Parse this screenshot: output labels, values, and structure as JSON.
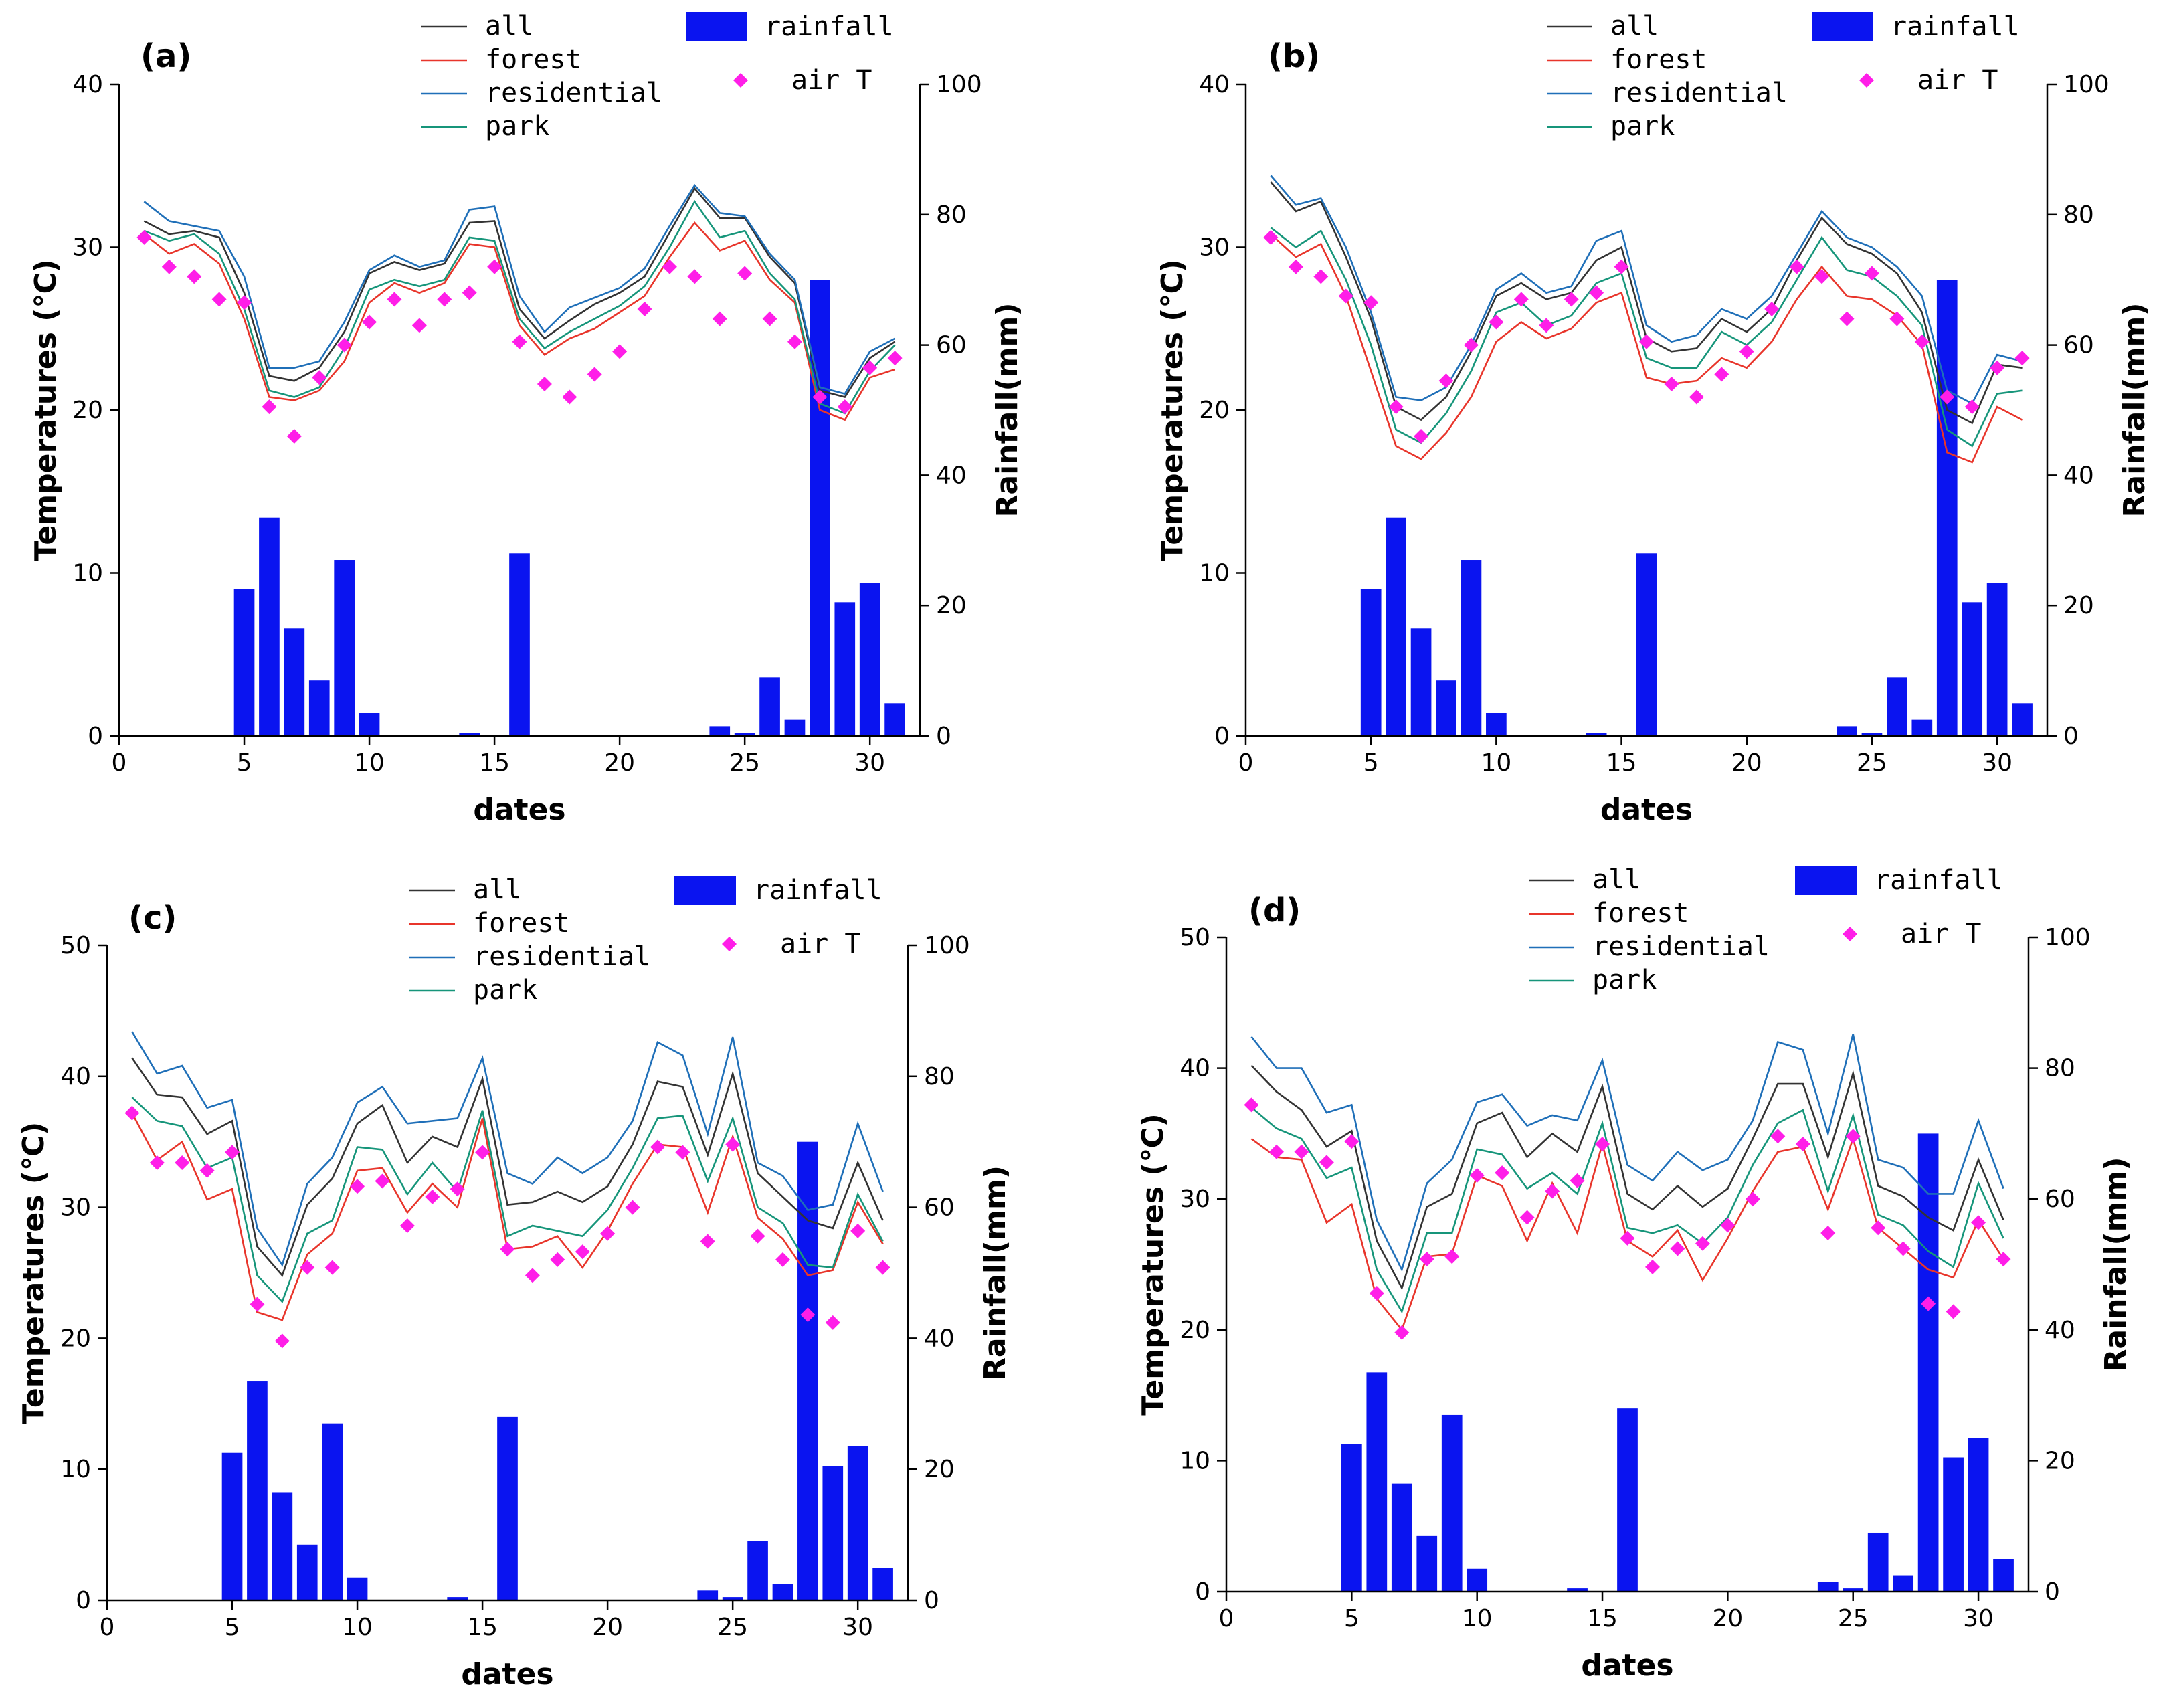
{
  "colors": {
    "all": "#333333",
    "forest": "#e8352b",
    "residential": "#1f6fb8",
    "park": "#16957a",
    "rainfall": "#0a14f0",
    "airT": "#ff1ee8",
    "axis": "#000000"
  },
  "chart_data": [
    {
      "type": "bar+line",
      "panel": "(a)",
      "xlabel": "dates",
      "ylabel": "Temperatures (℃)",
      "y2label": "Rainfall(mm)",
      "xlim": [
        0,
        32
      ],
      "ylim": [
        0,
        40
      ],
      "y2lim": [
        0,
        100
      ],
      "xticks": [
        0,
        5,
        10,
        15,
        20,
        25,
        30
      ],
      "yticks": [
        0,
        10,
        20,
        30,
        40
      ],
      "y2ticks": [
        0,
        20,
        40,
        60,
        80,
        100
      ],
      "legend": {
        "all": "all",
        "forest": "forest",
        "residential": "residential",
        "park": "park",
        "rainfall": "rainfall",
        "airT": "air T"
      },
      "x": [
        1,
        2,
        3,
        4,
        5,
        6,
        7,
        8,
        9,
        10,
        11,
        12,
        13,
        14,
        15,
        16,
        17,
        18,
        19,
        20,
        21,
        22,
        23,
        24,
        25,
        26,
        27,
        28,
        29,
        30,
        31
      ],
      "series": [
        {
          "key": "all",
          "name": "all",
          "values": [
            31.6,
            30.8,
            31.0,
            30.6,
            27.2,
            22.1,
            21.8,
            22.6,
            24.8,
            28.4,
            29.1,
            28.6,
            29.0,
            31.5,
            31.6,
            26.2,
            24.4,
            25.5,
            26.5,
            27.2,
            28.2,
            30.9,
            33.6,
            31.8,
            31.8,
            29.4,
            27.8,
            21.2,
            20.8,
            23.2,
            24.2
          ]
        },
        {
          "key": "forest",
          "name": "forest",
          "values": [
            30.8,
            29.6,
            30.2,
            29.0,
            25.6,
            20.8,
            20.6,
            21.2,
            23.0,
            26.6,
            27.8,
            27.2,
            27.8,
            30.2,
            30.0,
            25.2,
            23.4,
            24.4,
            25.0,
            26.0,
            27.0,
            29.4,
            31.5,
            29.8,
            30.4,
            28.0,
            26.6,
            20.0,
            19.4,
            22.0,
            22.5
          ]
        },
        {
          "key": "residential",
          "name": "residential",
          "values": [
            32.8,
            31.6,
            31.3,
            31.0,
            28.2,
            22.6,
            22.6,
            23.0,
            25.4,
            28.6,
            29.5,
            28.8,
            29.2,
            32.3,
            32.5,
            27.0,
            24.8,
            26.3,
            26.9,
            27.5,
            28.7,
            31.3,
            33.8,
            32.1,
            31.9,
            29.6,
            28.0,
            21.4,
            21.0,
            23.6,
            24.4
          ]
        },
        {
          "key": "park",
          "name": "park",
          "values": [
            31.0,
            30.4,
            30.8,
            29.6,
            26.2,
            21.2,
            20.8,
            21.4,
            23.8,
            27.4,
            28.0,
            27.6,
            28.0,
            30.6,
            30.4,
            25.6,
            23.8,
            24.8,
            25.6,
            26.4,
            27.6,
            30.0,
            32.8,
            30.6,
            31.0,
            28.4,
            26.8,
            20.4,
            19.8,
            22.4,
            24.0
          ]
        }
      ],
      "airT": [
        30.6,
        28.8,
        28.2,
        26.8,
        26.6,
        20.2,
        18.4,
        22.0,
        24.0,
        25.4,
        26.8,
        25.2,
        26.8,
        27.2,
        28.8,
        24.2,
        21.6,
        20.8,
        22.2,
        23.6,
        26.2,
        28.8,
        28.2,
        25.6,
        28.4,
        25.6,
        24.2,
        20.8,
        20.2,
        22.6,
        23.2
      ],
      "rainfall": [
        0,
        0,
        0,
        0,
        22.5,
        33.5,
        16.5,
        8.5,
        27.0,
        3.5,
        0,
        0,
        0,
        0.5,
        0,
        28.0,
        0,
        0,
        0,
        0,
        0,
        0,
        0,
        1.5,
        0.5,
        9.0,
        2.5,
        70.0,
        20.5,
        23.5,
        5.0
      ]
    },
    {
      "type": "bar+line",
      "panel": "(b)",
      "xlabel": "dates",
      "ylabel": "Temperatures (℃)",
      "y2label": "Rainfall(mm)",
      "xlim": [
        0,
        32
      ],
      "ylim": [
        0,
        40
      ],
      "y2lim": [
        0,
        100
      ],
      "xticks": [
        0,
        5,
        10,
        15,
        20,
        25,
        30
      ],
      "yticks": [
        0,
        10,
        20,
        30,
        40
      ],
      "y2ticks": [
        0,
        20,
        40,
        60,
        80,
        100
      ],
      "legend": {
        "all": "all",
        "forest": "forest",
        "residential": "residential",
        "park": "park",
        "rainfall": "rainfall",
        "airT": "air T"
      },
      "x": [
        1,
        2,
        3,
        4,
        5,
        6,
        7,
        8,
        9,
        10,
        11,
        12,
        13,
        14,
        15,
        16,
        17,
        18,
        19,
        20,
        21,
        22,
        23,
        24,
        25,
        26,
        27,
        28,
        29,
        30,
        31
      ],
      "series": [
        {
          "key": "all",
          "name": "all",
          "values": [
            34.0,
            32.2,
            32.8,
            29.4,
            25.6,
            20.2,
            19.4,
            20.8,
            23.6,
            27.0,
            27.8,
            26.8,
            27.2,
            29.2,
            30.0,
            24.4,
            23.6,
            23.8,
            25.6,
            24.8,
            26.2,
            29.2,
            31.8,
            30.2,
            29.6,
            28.4,
            26.0,
            20.0,
            19.2,
            22.8,
            22.6
          ]
        },
        {
          "key": "forest",
          "name": "forest",
          "values": [
            30.8,
            29.4,
            30.2,
            27.0,
            22.4,
            17.8,
            17.0,
            18.6,
            20.8,
            24.2,
            25.4,
            24.4,
            25.0,
            26.6,
            27.2,
            22.0,
            21.6,
            21.8,
            23.2,
            22.6,
            24.2,
            26.8,
            28.8,
            27.0,
            26.8,
            25.8,
            24.0,
            17.4,
            16.8,
            20.2,
            19.4
          ]
        },
        {
          "key": "residential",
          "name": "residential",
          "values": [
            34.4,
            32.6,
            33.0,
            30.0,
            26.0,
            20.8,
            20.6,
            21.4,
            24.0,
            27.4,
            28.4,
            27.2,
            27.6,
            30.4,
            31.0,
            25.2,
            24.2,
            24.6,
            26.2,
            25.6,
            27.0,
            29.6,
            32.2,
            30.6,
            30.0,
            28.8,
            27.0,
            21.2,
            20.4,
            23.4,
            23.0
          ]
        },
        {
          "key": "park",
          "name": "park",
          "values": [
            31.2,
            30.0,
            31.0,
            28.0,
            24.0,
            18.8,
            18.0,
            19.8,
            22.4,
            26.0,
            26.6,
            25.2,
            25.8,
            27.8,
            28.4,
            23.2,
            22.6,
            22.6,
            24.8,
            24.0,
            25.4,
            28.0,
            30.6,
            28.6,
            28.2,
            27.0,
            25.2,
            18.8,
            17.8,
            21.0,
            21.2
          ]
        }
      ],
      "airT": [
        30.6,
        28.8,
        28.2,
        27.0,
        26.6,
        20.2,
        18.4,
        21.8,
        24.0,
        25.4,
        26.8,
        25.2,
        26.8,
        27.2,
        28.8,
        24.2,
        21.6,
        20.8,
        22.2,
        23.6,
        26.2,
        28.8,
        28.2,
        25.6,
        28.4,
        25.6,
        24.2,
        20.8,
        20.2,
        22.6,
        23.2
      ],
      "rainfall": [
        0,
        0,
        0,
        0,
        22.5,
        33.5,
        16.5,
        8.5,
        27.0,
        3.5,
        0,
        0,
        0,
        0.5,
        0,
        28.0,
        0,
        0,
        0,
        0,
        0,
        0,
        0,
        1.5,
        0.5,
        9.0,
        2.5,
        70.0,
        20.5,
        23.5,
        5.0
      ]
    },
    {
      "type": "bar+line",
      "panel": "(c)",
      "xlabel": "dates",
      "ylabel": "Temperatures (℃)",
      "y2label": "Rainfall(mm)",
      "xlim": [
        0,
        32
      ],
      "ylim": [
        0,
        50
      ],
      "y2lim": [
        0,
        100
      ],
      "xticks": [
        0,
        5,
        10,
        15,
        20,
        25,
        30
      ],
      "yticks": [
        0,
        10,
        20,
        30,
        40,
        50
      ],
      "y2ticks": [
        0,
        20,
        40,
        60,
        80,
        100
      ],
      "legend": {
        "all": "all",
        "forest": "forest",
        "residential": "residential",
        "park": "park",
        "rainfall": "rainfall",
        "airT": "air T"
      },
      "x": [
        1,
        2,
        3,
        4,
        5,
        6,
        7,
        8,
        9,
        10,
        11,
        12,
        13,
        14,
        15,
        16,
        17,
        18,
        19,
        20,
        21,
        22,
        23,
        24,
        25,
        26,
        27,
        28,
        29,
        30,
        31
      ],
      "series": [
        {
          "key": "all",
          "name": "all",
          "values": [
            41.4,
            38.6,
            38.4,
            35.6,
            36.6,
            27.0,
            24.8,
            30.2,
            32.2,
            36.4,
            37.8,
            33.4,
            35.4,
            34.6,
            39.8,
            30.2,
            30.4,
            31.2,
            30.4,
            31.6,
            34.8,
            39.6,
            39.2,
            34.0,
            40.2,
            32.6,
            30.8,
            29.0,
            28.4,
            33.4,
            29.0
          ]
        },
        {
          "key": "forest",
          "name": "forest",
          "values": [
            37.2,
            33.6,
            35.0,
            30.6,
            31.4,
            22.0,
            21.4,
            26.4,
            28.0,
            32.8,
            33.0,
            29.6,
            31.8,
            30.0,
            36.8,
            26.8,
            27.0,
            27.8,
            25.4,
            28.2,
            31.8,
            34.8,
            34.6,
            29.6,
            35.4,
            29.2,
            27.6,
            24.8,
            25.2,
            30.4,
            27.2
          ]
        },
        {
          "key": "residential",
          "name": "residential",
          "values": [
            43.4,
            40.2,
            40.8,
            37.6,
            38.2,
            28.4,
            25.6,
            31.8,
            33.8,
            38.0,
            39.2,
            36.4,
            36.6,
            36.8,
            41.4,
            32.6,
            31.8,
            33.8,
            32.6,
            33.8,
            36.6,
            42.6,
            41.6,
            35.6,
            43.0,
            33.4,
            32.4,
            29.8,
            30.2,
            36.4,
            31.2
          ]
        },
        {
          "key": "park",
          "name": "park",
          "values": [
            38.4,
            36.6,
            36.2,
            33.0,
            33.8,
            24.8,
            22.8,
            28.0,
            29.0,
            34.6,
            34.4,
            31.0,
            33.4,
            31.2,
            37.4,
            27.8,
            28.6,
            28.2,
            27.8,
            29.8,
            33.0,
            36.8,
            37.0,
            32.0,
            36.8,
            30.0,
            28.8,
            25.6,
            25.4,
            31.0,
            27.4
          ]
        }
      ],
      "airT": [
        37.2,
        33.4,
        33.4,
        32.8,
        34.2,
        22.6,
        19.8,
        25.4,
        25.4,
        31.6,
        32.0,
        28.6,
        30.8,
        31.4,
        34.2,
        26.8,
        24.8,
        26.0,
        26.6,
        28.0,
        30.0,
        34.6,
        34.2,
        27.4,
        34.8,
        27.8,
        26.0,
        21.8,
        21.2,
        28.2,
        25.4
      ],
      "rainfall": [
        0,
        0,
        0,
        0,
        22.5,
        33.5,
        16.5,
        8.5,
        27.0,
        3.5,
        0,
        0,
        0,
        0.5,
        0,
        28.0,
        0,
        0,
        0,
        0,
        0,
        0,
        0,
        1.5,
        0.5,
        9.0,
        2.5,
        70.0,
        20.5,
        23.5,
        5.0
      ]
    },
    {
      "type": "bar+line",
      "panel": "(d)",
      "xlabel": "dates",
      "ylabel": "Temperatures (℃)",
      "y2label": "Rainfall(mm)",
      "xlim": [
        0,
        32
      ],
      "ylim": [
        0,
        50
      ],
      "y2lim": [
        0,
        100
      ],
      "xticks": [
        0,
        5,
        10,
        15,
        20,
        25,
        30
      ],
      "yticks": [
        0,
        10,
        20,
        30,
        40,
        50
      ],
      "y2ticks": [
        0,
        20,
        40,
        60,
        80,
        100
      ],
      "legend": {
        "all": "all",
        "forest": "forest",
        "residential": "residential",
        "park": "park",
        "rainfall": "rainfall",
        "airT": "air T"
      },
      "x": [
        1,
        2,
        3,
        4,
        5,
        6,
        7,
        8,
        9,
        10,
        11,
        12,
        13,
        14,
        15,
        16,
        17,
        18,
        19,
        20,
        21,
        22,
        23,
        24,
        25,
        26,
        27,
        28,
        29,
        30,
        31
      ],
      "series": [
        {
          "key": "all",
          "name": "all",
          "values": [
            40.2,
            38.2,
            36.8,
            34.0,
            35.2,
            26.8,
            23.2,
            29.4,
            30.4,
            35.8,
            36.6,
            33.2,
            35.0,
            33.6,
            38.6,
            30.4,
            29.2,
            31.0,
            29.4,
            30.8,
            34.6,
            38.8,
            38.8,
            33.2,
            39.6,
            31.0,
            30.2,
            28.6,
            27.6,
            33.0,
            28.4
          ]
        },
        {
          "key": "forest",
          "name": "forest",
          "values": [
            34.6,
            33.2,
            33.0,
            28.2,
            29.6,
            22.4,
            20.0,
            25.6,
            25.8,
            31.8,
            31.0,
            26.8,
            31.2,
            27.4,
            34.2,
            26.8,
            25.6,
            27.6,
            23.8,
            27.0,
            30.6,
            33.6,
            34.0,
            29.2,
            34.6,
            27.8,
            26.2,
            24.6,
            24.0,
            28.4,
            25.4
          ]
        },
        {
          "key": "residential",
          "name": "residential",
          "values": [
            42.4,
            40.0,
            40.0,
            36.6,
            37.2,
            28.4,
            24.6,
            31.2,
            33.0,
            37.4,
            38.0,
            35.6,
            36.4,
            36.0,
            40.6,
            32.6,
            31.4,
            33.6,
            32.2,
            33.0,
            36.0,
            42.0,
            41.4,
            35.0,
            42.6,
            33.0,
            32.4,
            30.4,
            30.4,
            36.0,
            30.8
          ]
        },
        {
          "key": "park",
          "name": "park",
          "values": [
            37.0,
            35.4,
            34.6,
            31.6,
            32.4,
            24.6,
            21.4,
            27.4,
            27.4,
            33.8,
            33.4,
            30.8,
            32.0,
            30.4,
            35.8,
            27.8,
            27.4,
            28.0,
            26.6,
            28.6,
            32.6,
            35.8,
            36.8,
            30.6,
            36.4,
            28.8,
            28.0,
            26.0,
            24.8,
            31.2,
            27.0
          ]
        }
      ],
      "airT": [
        37.2,
        33.6,
        33.6,
        32.8,
        34.4,
        22.8,
        19.8,
        25.4,
        25.6,
        31.8,
        32.0,
        28.6,
        30.6,
        31.4,
        34.2,
        27.0,
        24.8,
        26.2,
        26.6,
        28.0,
        30.0,
        34.8,
        34.2,
        27.4,
        34.8,
        27.8,
        26.2,
        22.0,
        21.4,
        28.2,
        25.4
      ],
      "rainfall": [
        0,
        0,
        0,
        0,
        22.5,
        33.5,
        16.5,
        8.5,
        27.0,
        3.5,
        0,
        0,
        0,
        0.5,
        0,
        28.0,
        0,
        0,
        0,
        0,
        0,
        0,
        0,
        1.5,
        0.5,
        9.0,
        2.5,
        70.0,
        20.5,
        23.5,
        5.0
      ]
    }
  ]
}
